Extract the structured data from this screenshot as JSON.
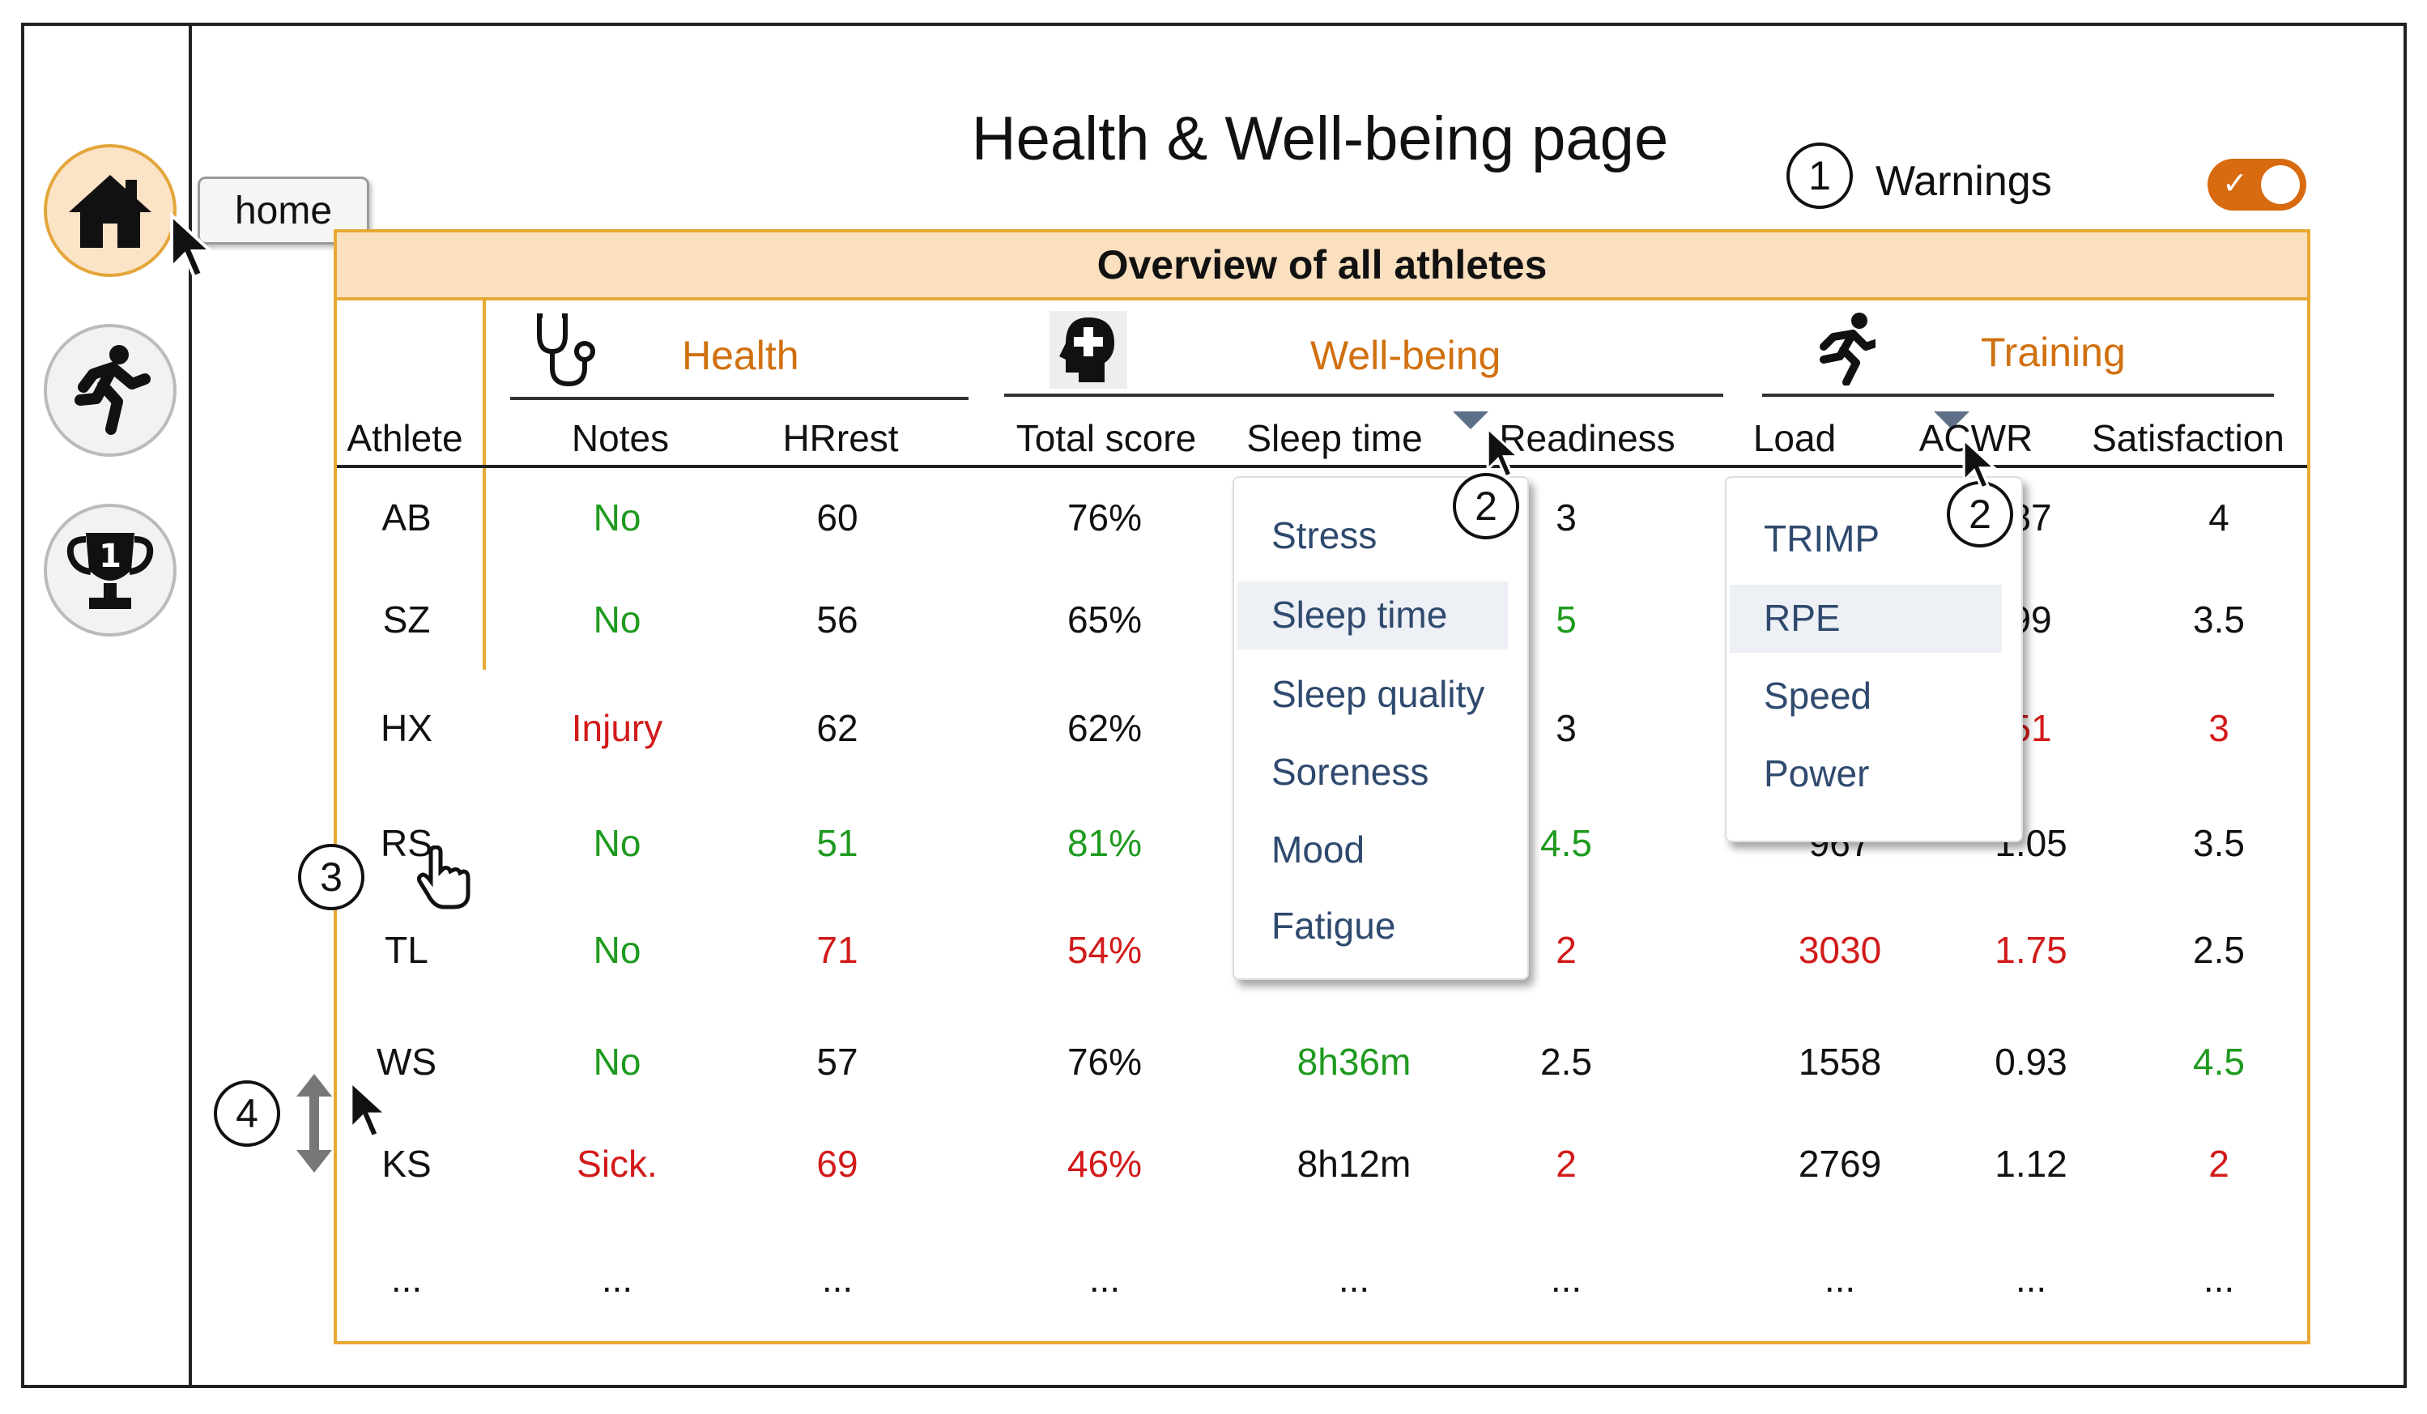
{
  "title": "Health & Well-being page",
  "warnings": {
    "label": "Warnings",
    "enabled": true,
    "callout": "1"
  },
  "tooltip": {
    "home": "home"
  },
  "panel": {
    "title": "Overview of all athletes"
  },
  "groups": {
    "health": "Health",
    "wellbeing": "Well-being",
    "training": "Training"
  },
  "columns": {
    "athlete": "Athlete",
    "notes": "Notes",
    "hrrest": "HRrest",
    "total_score": "Total score",
    "sleep_time": "Sleep time",
    "readiness": "Readiness",
    "load": "Load",
    "acwr": "ACWR",
    "satisfaction": "Satisfaction"
  },
  "callouts": {
    "dropdown1": "2",
    "dropdown2": "2",
    "row_click": "3",
    "scroll": "4"
  },
  "rows": [
    {
      "athlete": "AB",
      "notes": "No",
      "hrrest": "60",
      "total": "76%",
      "sleep": "",
      "readiness": "3",
      "load": "",
      "acwr": "87",
      "satisfaction": "4"
    },
    {
      "athlete": "SZ",
      "notes": "No",
      "hrrest": "56",
      "total": "65%",
      "sleep": "",
      "readiness": "5",
      "load": "",
      "acwr": "99",
      "satisfaction": "3.5"
    },
    {
      "athlete": "HX",
      "notes": "Injury",
      "hrrest": "62",
      "total": "62%",
      "sleep": "",
      "readiness": "3",
      "load": "",
      "acwr": "51",
      "satisfaction": "3"
    },
    {
      "athlete": "RS",
      "notes": "No",
      "hrrest": "51",
      "total": "81%",
      "sleep": "",
      "readiness": "4.5",
      "load": "967",
      "acwr": "1.05",
      "satisfaction": "3.5"
    },
    {
      "athlete": "TL",
      "notes": "No",
      "hrrest": "71",
      "total": "54%",
      "sleep": "",
      "readiness": "2",
      "load": "3030",
      "acwr": "1.75",
      "satisfaction": "2.5"
    },
    {
      "athlete": "WS",
      "notes": "No",
      "hrrest": "57",
      "total": "76%",
      "sleep": "8h36m",
      "readiness": "2.5",
      "load": "1558",
      "acwr": "0.93",
      "satisfaction": "4.5"
    },
    {
      "athlete": "KS",
      "notes": "Sick.",
      "hrrest": "69",
      "total": "46%",
      "sleep": "8h12m",
      "readiness": "2",
      "load": "2769",
      "acwr": "1.12",
      "satisfaction": "2"
    },
    {
      "athlete": "...",
      "notes": "...",
      "hrrest": "...",
      "total": "...",
      "sleep": "...",
      "readiness": "...",
      "load": "...",
      "acwr": "...",
      "satisfaction": "..."
    }
  ],
  "dropdown_wellbeing": {
    "items": [
      "Stress",
      "Sleep time",
      "Sleep quality",
      "Soreness",
      "Mood",
      "Fatigue"
    ],
    "selected": "Sleep time"
  },
  "dropdown_training": {
    "items": [
      "TRIMP",
      "RPE",
      "Speed",
      "Power"
    ],
    "selected": "RPE"
  },
  "colors": {
    "accent": "#d1700f",
    "border": "#e8a934",
    "header_bg": "#fbe0bf",
    "good": "#1f9a1f",
    "bad": "#d21a1a",
    "toggle": "#d86a10"
  },
  "icons": [
    "home-icon",
    "runner-icon",
    "trophy-icon",
    "stethoscope-icon",
    "head-plus-icon",
    "sprinter-icon",
    "cursor-icon",
    "hand-cursor-icon",
    "updown-arrow-icon"
  ]
}
